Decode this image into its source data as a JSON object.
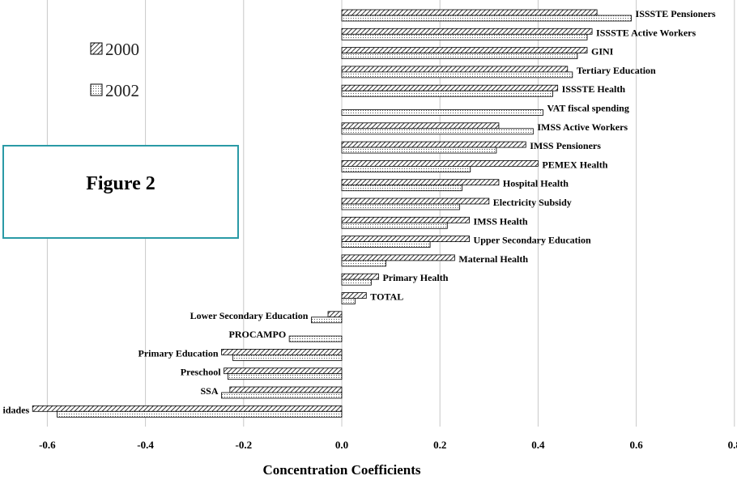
{
  "chart_data": {
    "type": "bar",
    "orientation": "horizontal",
    "categories": [
      "ISSSTE Pensioners",
      "ISSSTE Active Workers",
      "GINI",
      "Tertiary Education",
      "ISSSTE Health",
      "VAT fiscal spending",
      "IMSS Active Workers",
      "IMSS Pensioners",
      "PEMEX Health",
      "Hospital Health",
      "Electricity Subsidy",
      "IMSS Health",
      "Upper Secondary Education",
      "Maternal Health",
      "Primary Health",
      "TOTAL",
      "Lower Secondary Education",
      "PROCAMPO",
      "Primary Education",
      "Preschool",
      "SSA",
      "idades"
    ],
    "series": [
      {
        "name": "2000",
        "values": [
          0.52,
          0.51,
          0.5,
          0.46,
          0.44,
          null,
          0.32,
          0.375,
          0.4,
          0.32,
          0.3,
          0.26,
          0.26,
          0.23,
          0.075,
          0.05,
          -0.028,
          null,
          -0.245,
          -0.24,
          -0.228,
          -0.63
        ]
      },
      {
        "name": "2002",
        "values": [
          0.59,
          0.5,
          0.48,
          0.47,
          0.43,
          0.41,
          0.39,
          0.315,
          0.262,
          0.245,
          0.24,
          0.215,
          0.18,
          0.09,
          0.06,
          0.027,
          -0.062,
          -0.107,
          -0.222,
          -0.232,
          -0.245,
          -0.58
        ]
      }
    ],
    "xlim": [
      -0.7,
      0.8
    ],
    "xticks": [
      "-0.6",
      "-0.4",
      "-0.2",
      "0.0",
      "0.2",
      "0.4",
      "0.6",
      "0.8"
    ],
    "xlabel": "Concentration Coefficients",
    "legend_placement": "top-left",
    "grid": "vertical",
    "colors": {
      "grid": "#c8c8c8",
      "bar_stroke": "#000000",
      "box_border": "#2a9aa6"
    }
  },
  "legend": {
    "items": [
      "2000",
      "2002"
    ]
  },
  "annotation": {
    "text": "Figure 2"
  }
}
